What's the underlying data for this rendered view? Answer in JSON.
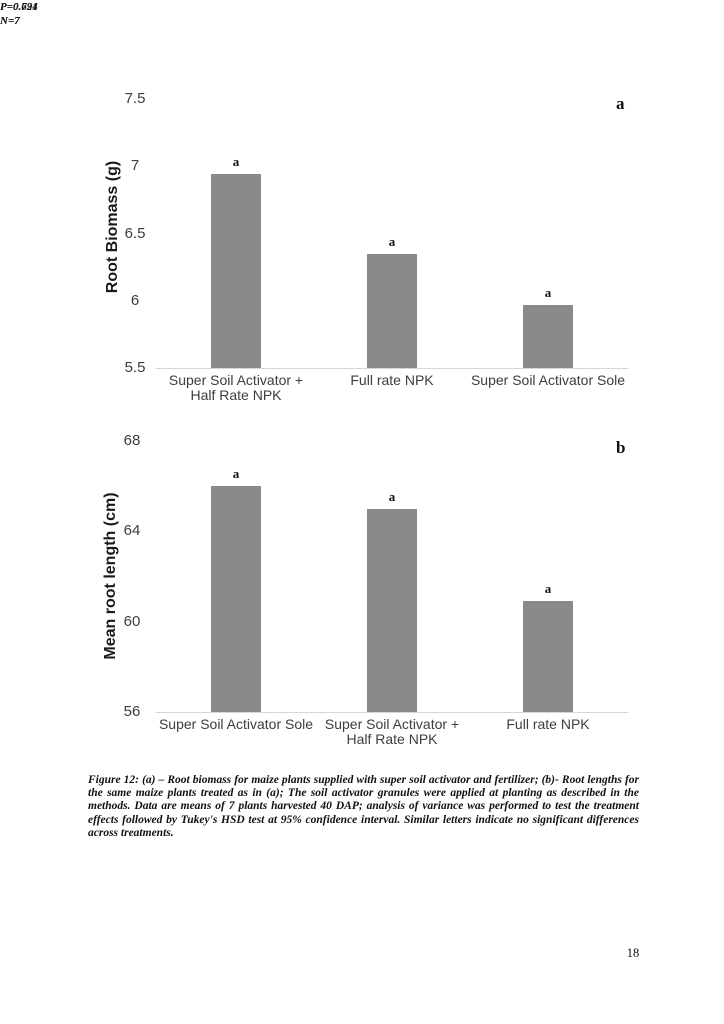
{
  "page": {
    "number": "18"
  },
  "caption": {
    "text": "Figure 12: (a) – Root biomass for maize plants supplied with super soil activator and fertilizer; (b)- Root lengths for the same maize plants treated as in (a); The soil activator granules were applied at planting as described in the methods. Data are means of 7 plants harvested 40 DAP; analysis of variance was performed to test the treatment effects followed by Tukey's HSD test at 95% confidence interval. Similar letters indicate no significant differences across treatments."
  },
  "colors": {
    "bar": "#8a8a8a",
    "axis_line": "#d6d6d6",
    "tick_text": "#3d3d3d"
  },
  "chart_data": [
    {
      "type": "bar",
      "panel_letter": "a",
      "title": "",
      "xlabel": "",
      "ylabel": "Root Biomass (g)",
      "categories": [
        "Super Soil Activator +\nHalf Rate NPK",
        "Full rate NPK",
        "Super Soil Activator Sole"
      ],
      "values": [
        6.94,
        6.35,
        5.97
      ],
      "bar_letters": [
        "a",
        "a",
        "a"
      ],
      "ylim": [
        5.5,
        7.5
      ],
      "yticks": [
        5.5,
        6,
        6.5,
        7,
        7.5
      ],
      "ytick_labels": [
        "5.5",
        "6",
        "6.5",
        "7",
        "7.5"
      ],
      "annotations": {
        "p_value": "P=0.791",
        "n": "N=7"
      },
      "grid": false,
      "legend": "none",
      "bar_color": "#8a8a8a"
    },
    {
      "type": "bar",
      "panel_letter": "b",
      "title": "",
      "xlabel": "",
      "ylabel": "Mean root length (cm)",
      "categories": [
        "Super Soil Activator Sole",
        "Super Soil Activator +\nHalf Rate NPK",
        "Full rate NPK"
      ],
      "values": [
        66.0,
        65.0,
        60.9
      ],
      "bar_letters": [
        "a",
        "a",
        "a"
      ],
      "ylim": [
        56,
        68
      ],
      "yticks": [
        56,
        60,
        64,
        68
      ],
      "ytick_labels": [
        "56",
        "60",
        "64",
        "68"
      ],
      "annotations": {
        "p_value": "P=0.624",
        "n": "N=7"
      },
      "grid": false,
      "legend": "none",
      "bar_color": "#8a8a8a"
    }
  ]
}
